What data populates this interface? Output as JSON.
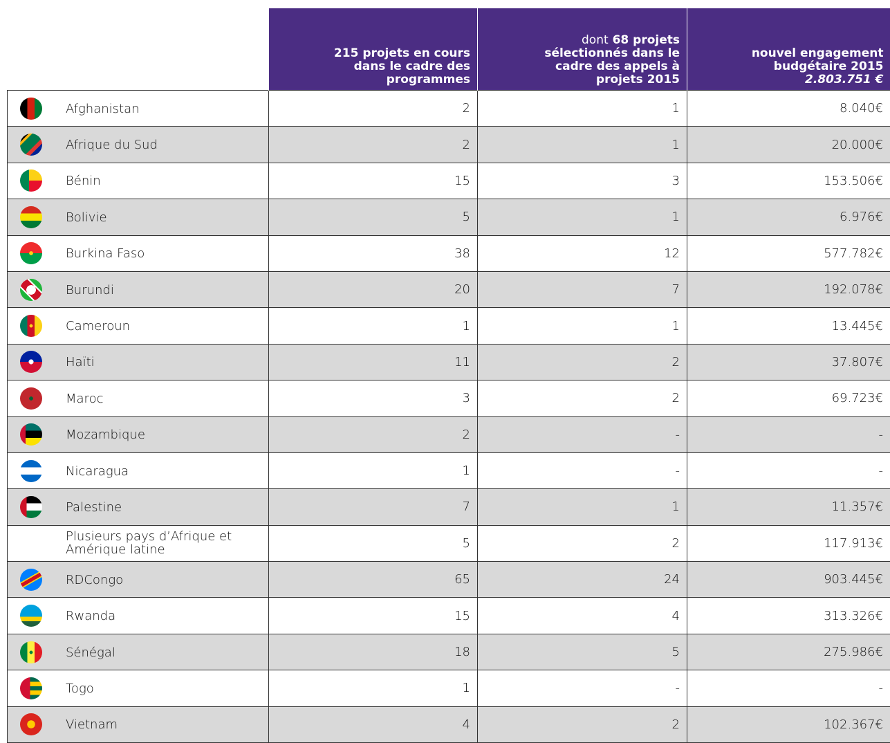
{
  "table": {
    "header": [
      {
        "bold": "215 projets en cours dans le cadre des programmes"
      },
      {
        "lead": "dont",
        "bold": "68 projets sélectionnés dans le cadre des appels à projets 2015"
      },
      {
        "bold": "nouvel engagement budgétaire 2015",
        "italic": "2.803.751 €"
      }
    ],
    "rows": [
      [
        "Afghanistan",
        "2",
        "1",
        "8.040€"
      ],
      [
        "Afrique du Sud",
        "2",
        "1",
        "20.000€"
      ],
      [
        "Bénin",
        "15",
        "3",
        "153.506€"
      ],
      [
        "Bolivie",
        "5",
        "1",
        "6.976€"
      ],
      [
        "Burkina Faso",
        "38",
        "12",
        "577.782€"
      ],
      [
        "Burundi",
        "20",
        "7",
        "192.078€"
      ],
      [
        "Cameroun",
        "1",
        "1",
        "13.445€"
      ],
      [
        "Haïti",
        "11",
        "2",
        "37.807€"
      ],
      [
        "Maroc",
        "3",
        "2",
        "69.723€"
      ],
      [
        "Mozambique",
        "2",
        "-",
        "-"
      ],
      [
        "Nicaragua",
        "1",
        "-",
        "-"
      ],
      [
        "Palestine",
        "7",
        "1",
        "11.357€"
      ],
      [
        "Plusieurs pays d’Afrique et Amérique latine",
        "5",
        "2",
        "117.913€"
      ],
      [
        "RDCongo",
        "65",
        "24",
        "903.445€"
      ],
      [
        "Rwanda",
        "15",
        "4",
        "313.326€"
      ],
      [
        "Sénégal",
        "18",
        "5",
        "275.986€"
      ],
      [
        "Togo",
        "1",
        "-",
        "-"
      ],
      [
        "Vietnam",
        "4",
        "2",
        "102.367€"
      ]
    ]
  }
}
